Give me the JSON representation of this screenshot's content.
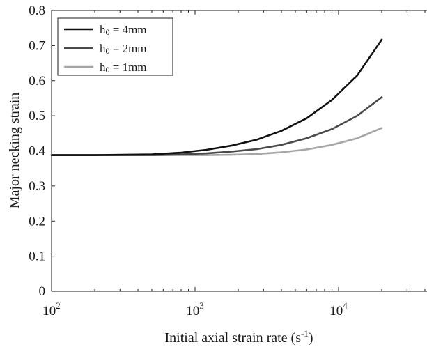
{
  "chart_data": {
    "type": "line",
    "title": "",
    "xlabel": {
      "base": "Initial axial strain rate (s",
      "sup": "-1",
      "end": ")"
    },
    "ylabel": "Major necking strain",
    "x_scale": "log",
    "xlim": [
      100,
      40000
    ],
    "ylim": [
      0,
      0.8
    ],
    "x_ticks": [
      {
        "value": 100,
        "base": "10",
        "exp": "2"
      },
      {
        "value": 1000,
        "base": "10",
        "exp": "3"
      },
      {
        "value": 10000,
        "base": "10",
        "exp": "4"
      }
    ],
    "y_ticks": [
      {
        "value": 0,
        "label": "0"
      },
      {
        "value": 0.1,
        "label": "0.1"
      },
      {
        "value": 0.2,
        "label": "0.2"
      },
      {
        "value": 0.3,
        "label": "0.3"
      },
      {
        "value": 0.4,
        "label": "0.4"
      },
      {
        "value": 0.5,
        "label": "0.5"
      },
      {
        "value": 0.6,
        "label": "0.6"
      },
      {
        "value": 0.7,
        "label": "0.7"
      },
      {
        "value": 0.8,
        "label": "0.8"
      }
    ],
    "grid": false,
    "legend_position": "top-left",
    "series": [
      {
        "name": {
          "pre": "h",
          "sub": "0",
          "post": " = 4mm"
        },
        "color": "#111111",
        "x": [
          100,
          200,
          500,
          800,
          1200,
          1800,
          2700,
          4000,
          6000,
          9000,
          13500,
          20000
        ],
        "y": [
          0.388,
          0.388,
          0.39,
          0.395,
          0.403,
          0.415,
          0.432,
          0.457,
          0.493,
          0.545,
          0.615,
          0.717
        ]
      },
      {
        "name": {
          "pre": "h",
          "sub": "0",
          "post": " = 2mm"
        },
        "color": "#4a4a4a",
        "x": [
          100,
          200,
          500,
          800,
          1200,
          1800,
          2700,
          4000,
          6000,
          9000,
          13500,
          20000
        ],
        "y": [
          0.388,
          0.388,
          0.388,
          0.39,
          0.393,
          0.398,
          0.405,
          0.417,
          0.436,
          0.462,
          0.5,
          0.553
        ]
      },
      {
        "name": {
          "pre": "h",
          "sub": "0",
          "post": " = 1mm"
        },
        "color": "#a6a6a6",
        "x": [
          100,
          200,
          500,
          800,
          1200,
          1800,
          2700,
          4000,
          6000,
          9000,
          13500,
          20000
        ],
        "y": [
          0.388,
          0.388,
          0.388,
          0.388,
          0.388,
          0.389,
          0.391,
          0.396,
          0.404,
          0.417,
          0.436,
          0.465
        ]
      }
    ]
  }
}
